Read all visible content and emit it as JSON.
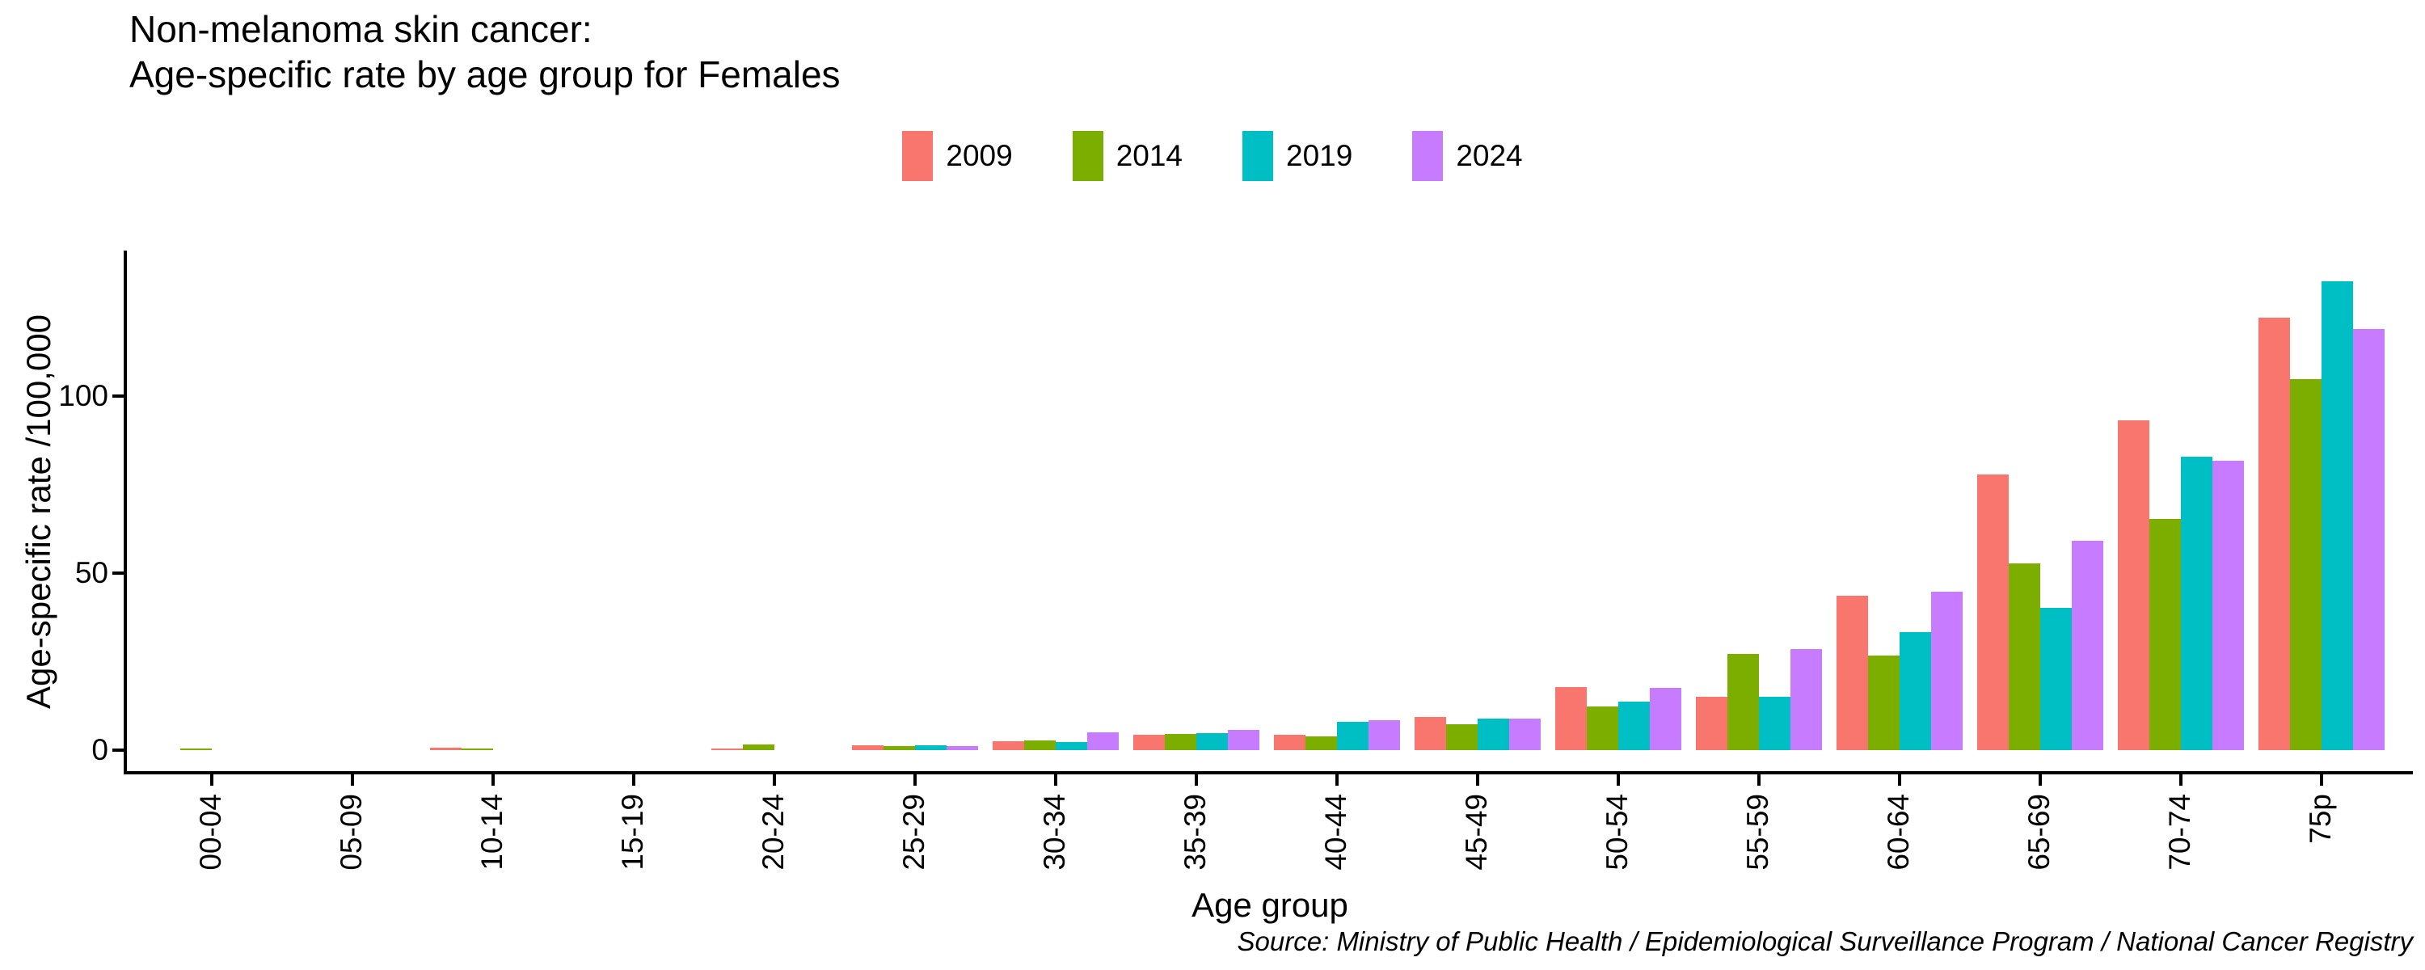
{
  "title": {
    "line1": "Non-melanoma skin cancer:",
    "line2": "Age-specific rate by age group for Females"
  },
  "chart_data": {
    "type": "bar",
    "title": "Non-melanoma skin cancer: Age-specific rate by age group for Females",
    "xlabel": "Age group",
    "ylabel": "Age-specific rate /100,000",
    "categories": [
      "00-04",
      "05-09",
      "10-14",
      "15-19",
      "20-24",
      "25-29",
      "30-34",
      "35-39",
      "40-44",
      "45-49",
      "50-54",
      "55-59",
      "60-64",
      "65-69",
      "70-74",
      "75p"
    ],
    "series": [
      {
        "name": "2009",
        "color": "#F8766D",
        "values": [
          0,
          0,
          0.6,
          0,
          0.4,
          1.4,
          2.5,
          4.3,
          4.4,
          9.4,
          17.7,
          15.1,
          43.5,
          77.8,
          93.2,
          122.2
        ]
      },
      {
        "name": "2014",
        "color": "#7CAE00",
        "values": [
          0.3,
          0,
          0.2,
          0,
          1.5,
          1.1,
          2.8,
          4.5,
          3.9,
          7.4,
          12.4,
          27.1,
          26.6,
          52.8,
          65.4,
          104.7
        ]
      },
      {
        "name": "2019",
        "color": "#00BFC4",
        "values": [
          0,
          0,
          0,
          0,
          0,
          1.4,
          2.2,
          4.8,
          8.0,
          8.9,
          13.8,
          15.1,
          33.4,
          40.2,
          82.9,
          132.4
        ]
      },
      {
        "name": "2024",
        "color": "#C77CFF",
        "values": [
          0,
          0,
          0,
          0,
          0,
          1.2,
          5.0,
          5.7,
          8.4,
          9.0,
          17.6,
          28.5,
          44.7,
          59.1,
          81.7,
          118.9
        ]
      }
    ],
    "yticks": [
      0,
      50,
      100
    ],
    "ylim": [
      0,
      141
    ],
    "grid": false,
    "legend_position": "top"
  },
  "source": "Source: Ministry of Public Health / Epidemiological Surveillance Program / National Cancer Registry"
}
